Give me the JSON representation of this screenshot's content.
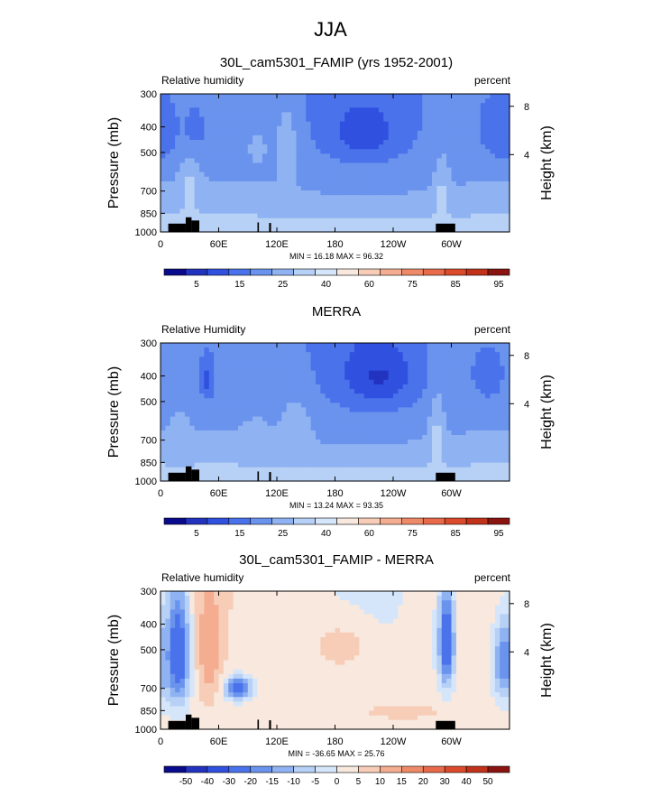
{
  "figure": {
    "title": "JJA"
  },
  "colorbar_colors": {
    "absolute": [
      "#0a0a8c",
      "#2233c0",
      "#3050e0",
      "#4a72ea",
      "#6a93ee",
      "#8fb3f2",
      "#b6d0f6",
      "#d6e6fa",
      "#f8e8de",
      "#f7cdb7",
      "#f4ad90",
      "#ef8a68",
      "#e86a4a",
      "#dc4a2c",
      "#c0321a",
      "#8a1410"
    ],
    "difference": [
      "#0a0a8c",
      "#2233c0",
      "#3050e0",
      "#4a72ea",
      "#6a93ee",
      "#8fb3f2",
      "#b6d0f6",
      "#d6e6fa",
      "#f8e8de",
      "#f7cdb7",
      "#f4ad90",
      "#ef8a68",
      "#e86a4a",
      "#dc4a2c",
      "#c0321a",
      "#8a1410"
    ]
  },
  "chart_data": [
    {
      "type": "heatmap",
      "title": "30L_cam5301_FAMIP (yrs 1952-2001)",
      "left_label": "Relative humidity",
      "right_label": "percent",
      "ylabel": "Pressure (mb)",
      "ylabel_right": "Height (km)",
      "yticks": [
        300,
        400,
        500,
        700,
        850,
        1000
      ],
      "yticks_right": [
        "8",
        "4"
      ],
      "xticks": [
        "0",
        "60E",
        "120E",
        "180",
        "120W",
        "60W"
      ],
      "xlim": [
        0,
        360
      ],
      "ylim": [
        1000,
        300
      ],
      "stats": "MIN =  16.18   MAX =  96.32",
      "colorbar_labels": [
        "5",
        "15",
        "25",
        "40",
        "60",
        "75",
        "85",
        "95"
      ],
      "palette": "absolute",
      "features": [
        {
          "lon": 210,
          "p": 420,
          "value": 18,
          "wx": 40,
          "wp": 110
        },
        {
          "lon": 350,
          "p": 410,
          "value": 25,
          "wx": 22,
          "wp": 110
        },
        {
          "lon": 0,
          "p": 410,
          "value": 28,
          "wx": 16,
          "wp": 100
        },
        {
          "lon": 35,
          "p": 410,
          "value": 30,
          "wx": 12,
          "wp": 80
        },
        {
          "lon": 130,
          "p": 470,
          "value": 70,
          "wx": 12,
          "wp": 170
        },
        {
          "lon": 100,
          "p": 480,
          "value": 62,
          "wx": 18,
          "wp": 120
        },
        {
          "lon": 30,
          "p": 700,
          "value": 80,
          "wx": 10,
          "wp": 180
        },
        {
          "lon": 290,
          "p": 740,
          "value": 78,
          "wx": 8,
          "wp": 230
        }
      ]
    },
    {
      "type": "heatmap",
      "title": "MERRA",
      "left_label": "Relative Humidity",
      "right_label": "percent",
      "ylabel": "Pressure (mb)",
      "ylabel_right": "Height (km)",
      "yticks": [
        300,
        400,
        500,
        700,
        850,
        1000
      ],
      "yticks_right": [
        "8",
        "4"
      ],
      "xticks": [
        "0",
        "60E",
        "120E",
        "180",
        "120W",
        "60W"
      ],
      "xlim": [
        0,
        360
      ],
      "ylim": [
        1000,
        300
      ],
      "stats": "MIN =  13.24   MAX =  93.35",
      "colorbar_labels": [
        "5",
        "15",
        "25",
        "40",
        "60",
        "75",
        "85",
        "95"
      ],
      "palette": "absolute",
      "features": [
        {
          "lon": 225,
          "p": 400,
          "value": 14,
          "wx": 42,
          "wp": 120
        },
        {
          "lon": 338,
          "p": 400,
          "value": 30,
          "wx": 18,
          "wp": 100
        },
        {
          "lon": 48,
          "p": 410,
          "value": 22,
          "wx": 8,
          "wp": 90
        },
        {
          "lon": 140,
          "p": 660,
          "value": 75,
          "wx": 14,
          "wp": 180
        },
        {
          "lon": 100,
          "p": 650,
          "value": 62,
          "wx": 18,
          "wp": 130
        },
        {
          "lon": 285,
          "p": 700,
          "value": 80,
          "wx": 8,
          "wp": 260
        },
        {
          "lon": 20,
          "p": 700,
          "value": 68,
          "wx": 10,
          "wp": 150
        }
      ]
    },
    {
      "type": "heatmap",
      "title": "30L_cam5301_FAMIP - MERRA",
      "left_label": "Relative humidity",
      "right_label": "percent",
      "ylabel": "Pressure (mb)",
      "ylabel_right": "Height (km)",
      "yticks": [
        300,
        400,
        500,
        700,
        850,
        1000
      ],
      "yticks_right": [
        "8",
        "4"
      ],
      "xticks": [
        "0",
        "60E",
        "120E",
        "180",
        "120W",
        "60W"
      ],
      "xlim": [
        0,
        360
      ],
      "ylim": [
        1000,
        300
      ],
      "stats": "MIN = -36.65   MAX =  25.76",
      "colorbar_labels": [
        "-50",
        "-40",
        "-30",
        "-20",
        "-15",
        "-10",
        "-5",
        "0",
        "5",
        "10",
        "15",
        "20",
        "30",
        "40",
        "50"
      ],
      "palette": "difference",
      "features": [
        {
          "lon": 18,
          "p": 520,
          "value": -30,
          "wx": 12,
          "wp": 250
        },
        {
          "lon": 295,
          "p": 470,
          "value": -30,
          "wx": 8,
          "wp": 200
        },
        {
          "lon": 355,
          "p": 560,
          "value": -20,
          "wx": 12,
          "wp": 200
        },
        {
          "lon": 80,
          "p": 700,
          "value": -25,
          "wx": 14,
          "wp": 70
        },
        {
          "lon": 50,
          "p": 480,
          "value": 15,
          "wx": 12,
          "wp": 260
        },
        {
          "lon": 185,
          "p": 490,
          "value": 8,
          "wx": 30,
          "wp": 100
        },
        {
          "lon": 250,
          "p": 860,
          "value": 8,
          "wx": 45,
          "wp": 60
        }
      ]
    }
  ]
}
